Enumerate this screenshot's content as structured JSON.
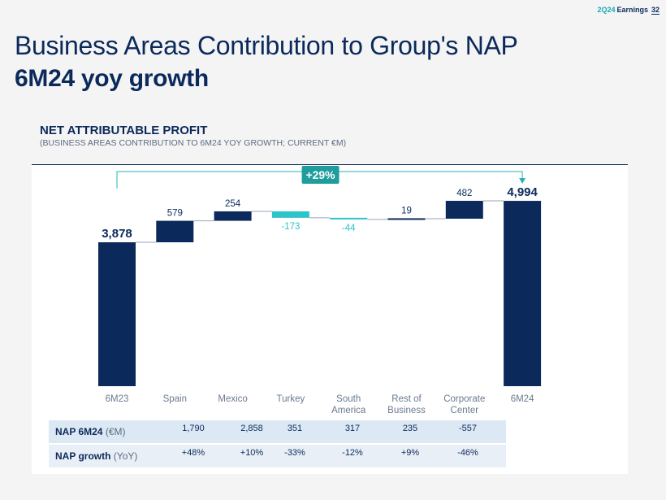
{
  "header": {
    "quarter": "2Q24",
    "label": "Earnings",
    "page": "32"
  },
  "title": {
    "line1": "Business Areas Contribution to Group's NAP",
    "line2": "6M24 yoy growth"
  },
  "section": {
    "title": "NET ATTRIBUTABLE PROFIT",
    "subtitle": "(BUSINESS AREAS CONTRIBUTION TO 6M24 YOY GROWTH; CURRENT €M)"
  },
  "colors": {
    "navy": "#0b2a5b",
    "teal": "#2cc4c9",
    "label_gray": "#6b7a8f",
    "bracket": "#2ab0b8"
  },
  "chart_data": {
    "type": "bar",
    "subtype": "waterfall",
    "categories": [
      "6M23",
      "Spain",
      "Mexico",
      "Turkey",
      "South America",
      "Rest of Business",
      "Corporate Center",
      "6M24"
    ],
    "category_lines": [
      [
        "6M23"
      ],
      [
        "Spain"
      ],
      [
        "Mexico"
      ],
      [
        "Turkey"
      ],
      [
        "South",
        "America"
      ],
      [
        "Rest of",
        "Business"
      ],
      [
        "Corporate",
        "Center"
      ],
      [
        "6M24"
      ]
    ],
    "values": [
      3878,
      579,
      254,
      -173,
      -44,
      19,
      482,
      4994
    ],
    "labels": [
      "3,878",
      "579",
      "254",
      "-173",
      "-44",
      "19",
      "482",
      "4,994"
    ],
    "kinds": [
      "total",
      "delta",
      "delta",
      "delta",
      "delta",
      "delta",
      "delta",
      "total"
    ],
    "growth_label": "+29%",
    "ylim": [
      0,
      5200
    ]
  },
  "table": {
    "rows": [
      {
        "label": "NAP 6M24",
        "unit": "(€M)",
        "values": [
          "1,790",
          "2,858",
          "351",
          "317",
          "235",
          "-557"
        ]
      },
      {
        "label": "NAP growth",
        "unit": "(YoY)",
        "values": [
          "+48%",
          "+10%",
          "-33%",
          "-12%",
          "+9%",
          "-46%"
        ]
      }
    ]
  }
}
